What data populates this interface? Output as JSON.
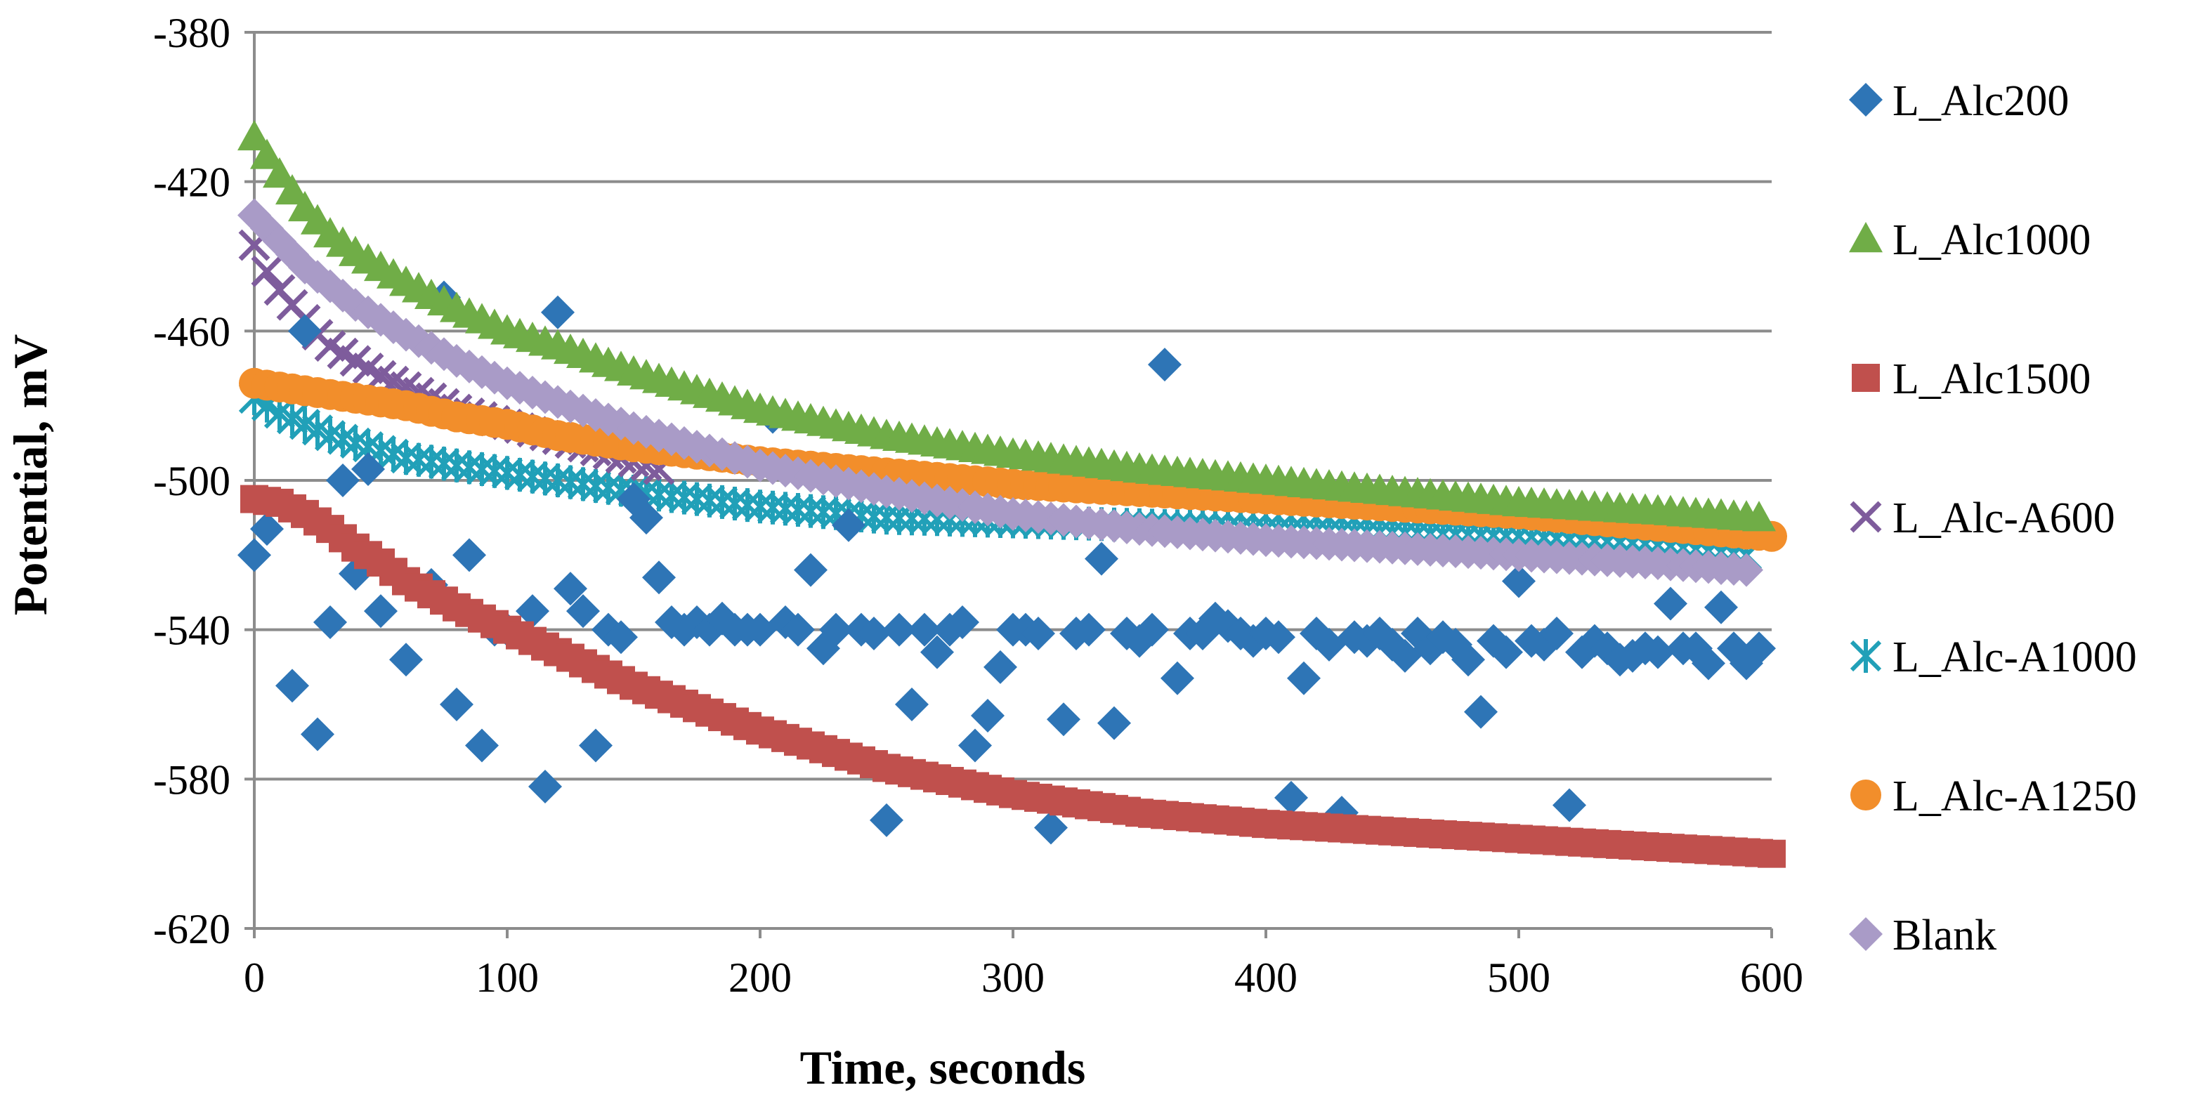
{
  "chart_data": {
    "type": "scatter",
    "title": "",
    "xlabel": "Time, seconds",
    "ylabel": "Potential, mV",
    "xlim": [
      0,
      600
    ],
    "ylim": [
      -620,
      -380
    ],
    "xticks": [
      0,
      100,
      200,
      300,
      400,
      500,
      600
    ],
    "yticks": [
      -380,
      -420,
      -460,
      -500,
      -540,
      -580,
      -620
    ],
    "grid": "horizontal",
    "legend_position": "right",
    "series": [
      {
        "name": "L_Alc200",
        "marker": "diamond",
        "color": "#2E75B6",
        "x": [
          0,
          5,
          15,
          20,
          25,
          30,
          35,
          40,
          45,
          50,
          60,
          70,
          75,
          80,
          85,
          90,
          95,
          100,
          110,
          115,
          120,
          125,
          130,
          135,
          140,
          145,
          150,
          155,
          160,
          165,
          170,
          175,
          180,
          185,
          190,
          195,
          200,
          205,
          210,
          215,
          220,
          225,
          230,
          235,
          240,
          245,
          250,
          255,
          260,
          265,
          270,
          275,
          280,
          285,
          290,
          295,
          300,
          305,
          310,
          315,
          320,
          325,
          330,
          335,
          340,
          345,
          350,
          355,
          360,
          365,
          370,
          375,
          380,
          385,
          390,
          395,
          400,
          405,
          410,
          415,
          420,
          425,
          430,
          435,
          440,
          445,
          450,
          455,
          460,
          465,
          470,
          475,
          480,
          485,
          490,
          495,
          500,
          505,
          510,
          515,
          520,
          525,
          530,
          535,
          540,
          545,
          550,
          555,
          560,
          565,
          570,
          575,
          580,
          585,
          590,
          595
        ],
        "y": [
          -520,
          -513,
          -555,
          -460,
          -568,
          -538,
          -500,
          -525,
          -497,
          -535,
          -548,
          -528,
          -451,
          -560,
          -520,
          -571,
          -540,
          -540,
          -535,
          -582,
          -455,
          -529,
          -535,
          -571,
          -540,
          -542,
          -505,
          -510,
          -526,
          -538,
          -540,
          -538,
          -540,
          -537,
          -540,
          -540,
          -540,
          -483,
          -538,
          -540,
          -524,
          -545,
          -540,
          -512,
          -540,
          -541,
          -591,
          -540,
          -560,
          -540,
          -546,
          -540,
          -538,
          -571,
          -563,
          -550,
          -540,
          -540,
          -541,
          -593,
          -564,
          -541,
          -540,
          -521,
          -565,
          -541,
          -543,
          -540,
          -469,
          -553,
          -541,
          -541,
          -537,
          -539,
          -541,
          -543,
          -541,
          -542,
          -585,
          -553,
          -541,
          -544,
          -589,
          -542,
          -543,
          -541,
          -544,
          -547,
          -541,
          -545,
          -542,
          -544,
          -548,
          -562,
          -543,
          -546,
          -527,
          -543,
          -544,
          -541,
          -587,
          -546,
          -543,
          -545,
          -548,
          -547,
          -545,
          -546,
          -533,
          -545,
          -545,
          -549,
          -534,
          -545,
          -549,
          -545
        ]
      },
      {
        "name": "L_Alc1000",
        "marker": "triangle",
        "color": "#70AD47",
        "x": [],
        "y": []
      },
      {
        "name": "L_Alc1500",
        "marker": "square",
        "color": "#C0504D",
        "x": [],
        "y": []
      },
      {
        "name": "L_Alc-A600",
        "marker": "x",
        "color": "#7E5C9C",
        "x": [],
        "y": []
      },
      {
        "name": "L_Alc-A1000",
        "marker": "star",
        "color": "#21A0B8",
        "x": [],
        "y": []
      },
      {
        "name": "L_Alc-A1250",
        "marker": "circle",
        "color": "#F28E2B",
        "x": [],
        "y": []
      },
      {
        "name": "Blank",
        "marker": "diamond",
        "color": "#A99BC7",
        "x": [],
        "y": []
      }
    ],
    "curves": {
      "L_Alc1000": {
        "x": [
          0,
          10,
          20,
          30,
          40,
          50,
          60,
          80,
          100,
          120,
          150,
          200,
          250,
          300,
          350,
          400,
          450,
          500,
          550,
          595
        ],
        "y": [
          -408,
          -418,
          -427,
          -434,
          -439,
          -443,
          -447,
          -454,
          -460,
          -464,
          -471,
          -481,
          -488,
          -493,
          -497,
          -500,
          -503,
          -506,
          -508,
          -510
        ]
      },
      "L_Alc1500": {
        "x": [
          0,
          10,
          20,
          30,
          40,
          50,
          60,
          80,
          100,
          120,
          150,
          200,
          250,
          300,
          350,
          400,
          450,
          500,
          550,
          600
        ],
        "y": [
          -505,
          -506,
          -509,
          -513,
          -518,
          -522,
          -527,
          -534,
          -540,
          -546,
          -555,
          -567,
          -577,
          -584,
          -589,
          -592,
          -594,
          -596,
          -598,
          -600
        ]
      },
      "L_Alc-A600": {
        "x": [
          0,
          5,
          10,
          15,
          20,
          25,
          30,
          40,
          50,
          60,
          70,
          80,
          90,
          100,
          110,
          120,
          130,
          140,
          150,
          160
        ],
        "y": [
          -437,
          -444,
          -449,
          -453,
          -457,
          -461,
          -464,
          -468,
          -472,
          -475,
          -478,
          -481,
          -483,
          -485,
          -487,
          -489,
          -491,
          -493,
          -495,
          -497
        ]
      },
      "L_Alc-A1000": {
        "x": [
          0,
          10,
          20,
          30,
          40,
          50,
          60,
          80,
          100,
          120,
          150,
          200,
          250,
          300,
          350,
          400,
          450,
          500,
          550,
          590
        ],
        "y": [
          -478,
          -482,
          -485,
          -488,
          -490,
          -492,
          -494,
          -496,
          -498,
          -500,
          -503,
          -507,
          -510,
          -511,
          -512,
          -513,
          -514,
          -515,
          -517,
          -520
        ]
      },
      "L_Alc-A1250": {
        "x": [
          0,
          10,
          20,
          30,
          40,
          50,
          60,
          80,
          100,
          120,
          150,
          200,
          250,
          300,
          350,
          400,
          450,
          500,
          550,
          600
        ],
        "y": [
          -474,
          -475,
          -476,
          -477,
          -478,
          -479,
          -480,
          -483,
          -485,
          -488,
          -491,
          -495,
          -498,
          -501,
          -503,
          -505,
          -507,
          -509,
          -512,
          -515
        ]
      },
      "Blank": {
        "x": [
          0,
          10,
          20,
          30,
          40,
          50,
          60,
          80,
          100,
          120,
          150,
          200,
          250,
          300,
          350,
          400,
          450,
          500,
          550,
          590
        ],
        "y": [
          -429,
          -436,
          -443,
          -448,
          -453,
          -457,
          -461,
          -468,
          -474,
          -479,
          -486,
          -496,
          -503,
          -509,
          -513,
          -516,
          -518,
          -520,
          -522,
          -524
        ]
      }
    }
  }
}
